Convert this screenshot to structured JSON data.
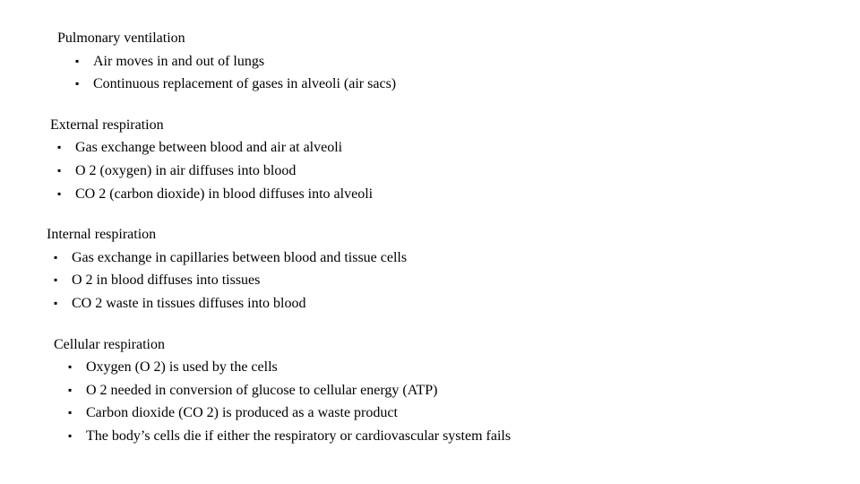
{
  "sections": [
    {
      "title": "Pulmonary ventilation",
      "items": [
        "Air moves in and out of lungs",
        "Continuous replacement of gases in alveoli (air sacs)"
      ]
    },
    {
      "title": "External respiration",
      "items": [
        "Gas exchange between blood and air at alveoli",
        "O 2 (oxygen) in air diffuses into blood",
        "CO 2  (carbon dioxide) in blood diffuses into alveoli"
      ]
    },
    {
      "title": "Internal respiration",
      "items": [
        "Gas exchange in capillaries between blood and tissue cells",
        "O 2 in blood diffuses into tissues",
        "CO 2 waste in tissues diffuses into blood"
      ]
    },
    {
      "title": "Cellular respiration",
      "items": [
        "Oxygen (O 2) is used by the cells",
        "O 2 needed in conversion of glucose to cellular energy (ATP)",
        "Carbon dioxide (CO 2) is produced as a waste product",
        "The body’s cells die if either the respiratory or cardiovascular system fails"
      ]
    }
  ],
  "styling": {
    "font_family": "Times New Roman",
    "font_size_pt": 12,
    "text_color": "#000000",
    "background_color": "#ffffff",
    "bullet_glyph": "▪"
  }
}
